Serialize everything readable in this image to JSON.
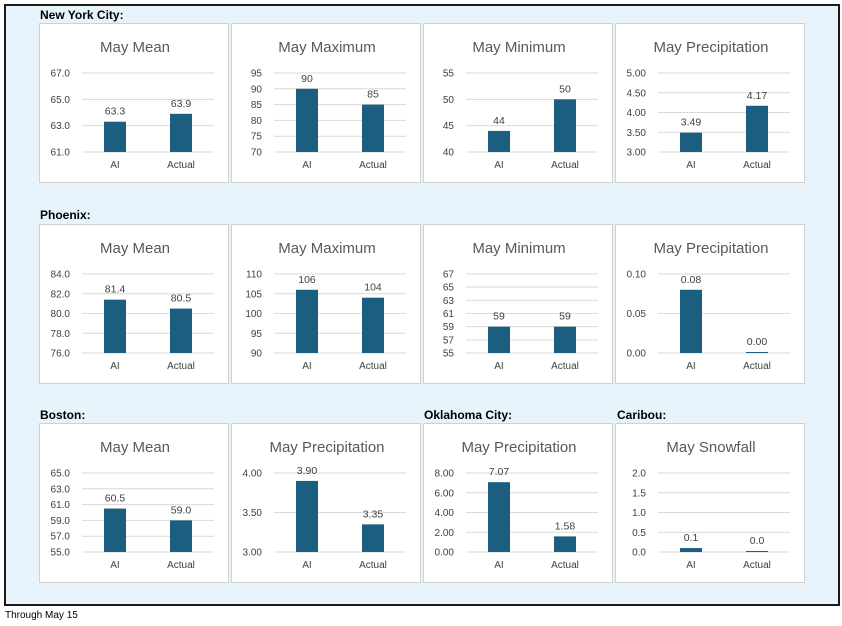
{
  "footnote": "Through May 15",
  "colors": {
    "bar": "#1b5e80",
    "grid": "#d9d9d9",
    "text": "#404040",
    "frame_bg": "#e8f4fb"
  },
  "sections": [
    {
      "label": "New York City:"
    },
    {
      "label": "Phoenix:"
    },
    {
      "label": "Boston:"
    },
    {
      "label": "Oklahoma City:"
    },
    {
      "label": "Caribou:"
    }
  ],
  "chart_data": [
    {
      "type": "bar",
      "title": "May Mean",
      "categories": [
        "AI",
        "Actual"
      ],
      "values": [
        63.3,
        63.9
      ],
      "value_labels": [
        "63.3",
        "63.9"
      ],
      "ylim": [
        61.0,
        67.0
      ],
      "yticks": [
        "61.0",
        "63.0",
        "65.0",
        "67.0"
      ],
      "grid": true
    },
    {
      "type": "bar",
      "title": "May Maximum",
      "categories": [
        "AI",
        "Actual"
      ],
      "values": [
        90,
        85
      ],
      "value_labels": [
        "90",
        "85"
      ],
      "ylim": [
        70,
        95
      ],
      "yticks": [
        "70",
        "75",
        "80",
        "85",
        "90",
        "95"
      ],
      "grid": true
    },
    {
      "type": "bar",
      "title": "May Minimum",
      "categories": [
        "AI",
        "Actual"
      ],
      "values": [
        44,
        50
      ],
      "value_labels": [
        "44",
        "50"
      ],
      "ylim": [
        40,
        55
      ],
      "yticks": [
        "40",
        "45",
        "50",
        "55"
      ],
      "grid": true
    },
    {
      "type": "bar",
      "title": "May Precipitation",
      "categories": [
        "AI",
        "Actual"
      ],
      "values": [
        3.49,
        4.17
      ],
      "value_labels": [
        "3.49",
        "4.17"
      ],
      "ylim": [
        3.0,
        5.0
      ],
      "yticks": [
        "3.00",
        "3.50",
        "4.00",
        "4.50",
        "5.00"
      ],
      "grid": true
    },
    {
      "type": "bar",
      "title": "May Mean",
      "categories": [
        "AI",
        "Actual"
      ],
      "values": [
        81.4,
        80.5
      ],
      "value_labels": [
        "81.4",
        "80.5"
      ],
      "ylim": [
        76.0,
        84.0
      ],
      "yticks": [
        "76.0",
        "78.0",
        "80.0",
        "82.0",
        "84.0"
      ],
      "grid": true
    },
    {
      "type": "bar",
      "title": "May Maximum",
      "categories": [
        "AI",
        "Actual"
      ],
      "values": [
        106,
        104
      ],
      "value_labels": [
        "106",
        "104"
      ],
      "ylim": [
        90,
        110
      ],
      "yticks": [
        "90",
        "95",
        "100",
        "105",
        "110"
      ],
      "grid": true
    },
    {
      "type": "bar",
      "title": "May Minimum",
      "categories": [
        "AI",
        "Actual"
      ],
      "values": [
        59,
        59
      ],
      "value_labels": [
        "59",
        "59"
      ],
      "ylim": [
        55,
        67
      ],
      "yticks": [
        "55",
        "57",
        "59",
        "61",
        "63",
        "65",
        "67"
      ],
      "grid": true
    },
    {
      "type": "bar",
      "title": "May Precipitation",
      "categories": [
        "AI",
        "Actual"
      ],
      "values": [
        0.08,
        0.0
      ],
      "value_labels": [
        "0.08",
        "0.00"
      ],
      "ylim": [
        0.0,
        0.1
      ],
      "yticks": [
        "0.00",
        "0.05",
        "0.10"
      ],
      "grid": true
    },
    {
      "type": "bar",
      "title": "May Mean",
      "categories": [
        "AI",
        "Actual"
      ],
      "values": [
        60.5,
        59.0
      ],
      "value_labels": [
        "60.5",
        "59.0"
      ],
      "ylim": [
        55.0,
        65.0
      ],
      "yticks": [
        "55.0",
        "57.0",
        "59.0",
        "61.0",
        "63.0",
        "65.0"
      ],
      "grid": true
    },
    {
      "type": "bar",
      "title": "May Precipitation",
      "categories": [
        "AI",
        "Actual"
      ],
      "values": [
        3.9,
        3.35
      ],
      "value_labels": [
        "3.90",
        "3.35"
      ],
      "ylim": [
        3.0,
        4.0
      ],
      "yticks": [
        "3.00",
        "3.50",
        "4.00"
      ],
      "grid": true
    },
    {
      "type": "bar",
      "title": "May Precipitation",
      "categories": [
        "AI",
        "Actual"
      ],
      "values": [
        7.07,
        1.58
      ],
      "value_labels": [
        "7.07",
        "1.58"
      ],
      "ylim": [
        0.0,
        8.0
      ],
      "yticks": [
        "0.00",
        "2.00",
        "4.00",
        "6.00",
        "8.00"
      ],
      "grid": true
    },
    {
      "type": "bar",
      "title": "May Snowfall",
      "categories": [
        "AI",
        "Actual"
      ],
      "values": [
        0.1,
        0.0
      ],
      "value_labels": [
        "0.1",
        "0.0"
      ],
      "ylim": [
        0.0,
        2.0
      ],
      "yticks": [
        "0.0",
        "0.5",
        "1.0",
        "1.5",
        "2.0"
      ],
      "grid": true
    }
  ]
}
